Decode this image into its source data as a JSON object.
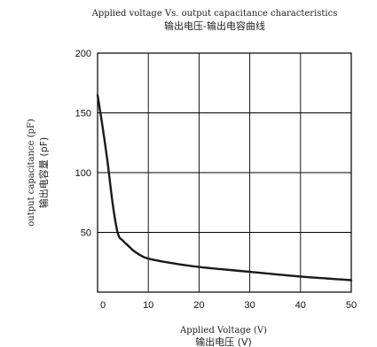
{
  "chart_data": {
    "type": "line",
    "title": "Applied voltage Vs. output capacitance characteristics",
    "subtitle": "输出电压-输出电容曲线",
    "xlabel": "Applied Voltage (V)",
    "xlabel_cn": "输出电压 (V)",
    "ylabel": "output capacitance (pF)",
    "ylabel_cn": "输出电容量 (pF)",
    "xlim": [
      0,
      50
    ],
    "ylim": [
      0,
      200
    ],
    "x_ticks": [
      "0",
      "10",
      "20",
      "30",
      "40",
      "50"
    ],
    "y_ticks": [
      "50",
      "100",
      "150",
      "200"
    ],
    "grid": true,
    "series": [
      {
        "x": [
          0,
          1,
          2,
          3,
          4,
          5,
          6,
          7,
          8,
          10,
          15,
          20,
          25,
          30,
          35,
          40,
          45,
          50
        ],
        "values": [
          165,
          138,
          108,
          73,
          49,
          43,
          39,
          35,
          32,
          28,
          24,
          21,
          19,
          17,
          15,
          13,
          11.5,
          10
        ]
      }
    ]
  }
}
